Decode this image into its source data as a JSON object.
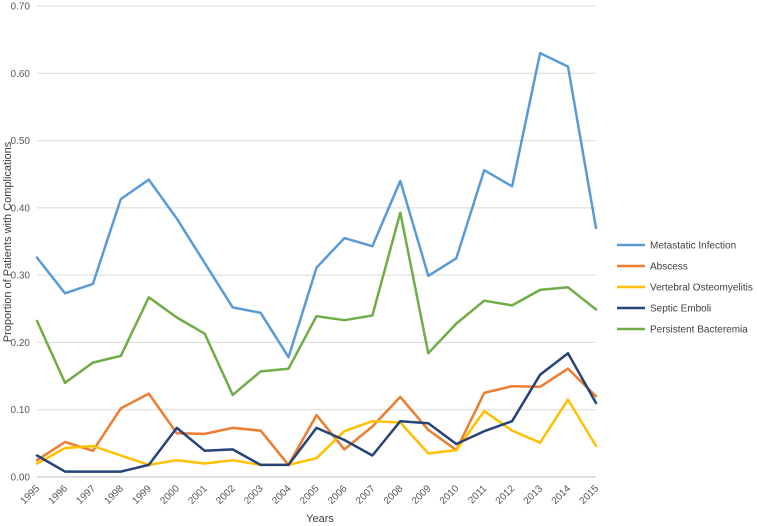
{
  "chart_data": {
    "type": "line",
    "title": "",
    "xlabel": "Years",
    "ylabel": "Proportion of Patients with Complications",
    "ylim": [
      0,
      0.7
    ],
    "yticks": [
      "0.00",
      "0.10",
      "0.20",
      "0.30",
      "0.40",
      "0.50",
      "0.60",
      "0.70"
    ],
    "grid": "horizontal",
    "legend": "right",
    "x": [
      "1995",
      "1996",
      "1997",
      "1998",
      "1999",
      "2000",
      "2001",
      "2002",
      "2003",
      "2004",
      "2005",
      "2006",
      "2007",
      "2008",
      "2009",
      "2010",
      "2011",
      "2012",
      "2013",
      "2014",
      "2015"
    ],
    "series": [
      {
        "name": "Metastatic Infection",
        "color": "#5B9BD5",
        "values": [
          0.326,
          0.273,
          0.287,
          0.413,
          0.442,
          0.384,
          0.318,
          0.252,
          0.244,
          0.178,
          0.311,
          0.355,
          0.343,
          0.44,
          0.299,
          0.325,
          0.456,
          0.432,
          0.63,
          0.61,
          0.37
        ]
      },
      {
        "name": "Abscess",
        "color": "#ED7D31",
        "values": [
          0.025,
          0.052,
          0.039,
          0.102,
          0.124,
          0.065,
          0.064,
          0.073,
          0.069,
          0.018,
          0.092,
          0.041,
          0.075,
          0.119,
          0.07,
          0.04,
          0.125,
          0.135,
          0.134,
          0.161,
          0.12
        ]
      },
      {
        "name": "Vertebral Osteomyelitis",
        "color": "#FFC000",
        "values": [
          0.02,
          0.043,
          0.046,
          0.032,
          0.018,
          0.025,
          0.02,
          0.025,
          0.018,
          0.018,
          0.028,
          0.068,
          0.083,
          0.081,
          0.035,
          0.04,
          0.098,
          0.069,
          0.051,
          0.115,
          0.046
        ]
      },
      {
        "name": "Septic Emboli",
        "color": "#264478",
        "values": [
          0.032,
          0.008,
          0.008,
          0.008,
          0.018,
          0.073,
          0.039,
          0.041,
          0.018,
          0.018,
          0.073,
          0.055,
          0.032,
          0.083,
          0.08,
          0.049,
          0.068,
          0.083,
          0.152,
          0.184,
          0.11
        ]
      },
      {
        "name": "Persistent Bacteremia",
        "color": "#70AD47",
        "values": [
          0.232,
          0.14,
          0.17,
          0.18,
          0.267,
          0.237,
          0.213,
          0.122,
          0.157,
          0.161,
          0.239,
          0.233,
          0.24,
          0.393,
          0.184,
          0.228,
          0.262,
          0.255,
          0.278,
          0.282,
          0.249
        ]
      }
    ]
  }
}
